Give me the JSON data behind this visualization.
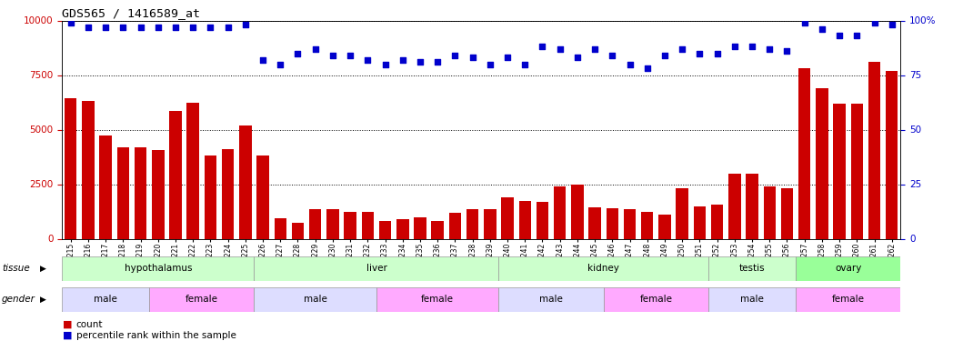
{
  "title": "GDS565 / 1416589_at",
  "samples": [
    "GSM19215",
    "GSM19216",
    "GSM19217",
    "GSM19218",
    "GSM19219",
    "GSM19220",
    "GSM19221",
    "GSM19222",
    "GSM19223",
    "GSM19224",
    "GSM19225",
    "GSM19226",
    "GSM19227",
    "GSM19228",
    "GSM19229",
    "GSM19230",
    "GSM19231",
    "GSM19232",
    "GSM19233",
    "GSM19234",
    "GSM19235",
    "GSM19236",
    "GSM19237",
    "GSM19238",
    "GSM19239",
    "GSM19240",
    "GSM19241",
    "GSM19242",
    "GSM19243",
    "GSM19244",
    "GSM19245",
    "GSM19246",
    "GSM19247",
    "GSM19248",
    "GSM19249",
    "GSM19250",
    "GSM19251",
    "GSM19252",
    "GSM19253",
    "GSM19254",
    "GSM19255",
    "GSM19256",
    "GSM19257",
    "GSM19258",
    "GSM19259",
    "GSM19260",
    "GSM19261",
    "GSM19262"
  ],
  "counts": [
    6450,
    6300,
    4750,
    4200,
    4200,
    4050,
    5850,
    6250,
    3800,
    4100,
    5200,
    3800,
    950,
    750,
    1350,
    1350,
    1250,
    1250,
    800,
    900,
    1000,
    800,
    1200,
    1350,
    1350,
    1900,
    1750,
    1700,
    2400,
    2500,
    1450,
    1400,
    1350,
    1250,
    1100,
    2300,
    1500,
    1550,
    3000,
    3000,
    2400,
    2300,
    7800,
    6900,
    6200,
    6200,
    8100,
    7700
  ],
  "percentile": [
    99,
    97,
    97,
    97,
    97,
    97,
    97,
    97,
    97,
    97,
    98,
    82,
    80,
    85,
    87,
    84,
    84,
    82,
    80,
    82,
    81,
    81,
    84,
    83,
    80,
    83,
    80,
    88,
    87,
    83,
    87,
    84,
    80,
    78,
    84,
    87,
    85,
    85,
    88,
    88,
    87,
    86,
    99,
    96,
    93,
    93,
    99,
    98
  ],
  "bar_color": "#cc0000",
  "dot_color": "#0000cc",
  "tissue_groups": [
    {
      "label": "hypothalamus",
      "start": 0,
      "end": 11,
      "color": "#ccffcc"
    },
    {
      "label": "liver",
      "start": 11,
      "end": 25,
      "color": "#ccffcc"
    },
    {
      "label": "kidney",
      "start": 25,
      "end": 37,
      "color": "#ccffcc"
    },
    {
      "label": "testis",
      "start": 37,
      "end": 42,
      "color": "#ccffcc"
    },
    {
      "label": "ovary",
      "start": 42,
      "end": 48,
      "color": "#99ff99"
    }
  ],
  "gender_groups": [
    {
      "label": "male",
      "start": 0,
      "end": 5,
      "color": "#ddddff"
    },
    {
      "label": "female",
      "start": 5,
      "end": 11,
      "color": "#ffaaff"
    },
    {
      "label": "male",
      "start": 11,
      "end": 18,
      "color": "#ddddff"
    },
    {
      "label": "female",
      "start": 18,
      "end": 25,
      "color": "#ffaaff"
    },
    {
      "label": "male",
      "start": 25,
      "end": 31,
      "color": "#ddddff"
    },
    {
      "label": "female",
      "start": 31,
      "end": 37,
      "color": "#ffaaff"
    },
    {
      "label": "male",
      "start": 37,
      "end": 42,
      "color": "#ddddff"
    },
    {
      "label": "female",
      "start": 42,
      "end": 48,
      "color": "#ffaaff"
    }
  ],
  "ylim": [
    0,
    10000
  ],
  "yticks": [
    0,
    2500,
    5000,
    7500,
    10000
  ],
  "right_yticks": [
    0,
    25,
    50,
    75,
    100
  ],
  "right_ylabels": [
    "0",
    "25",
    "50",
    "75",
    "100%"
  ],
  "background_color": "#ffffff",
  "grid_color": "#000000"
}
